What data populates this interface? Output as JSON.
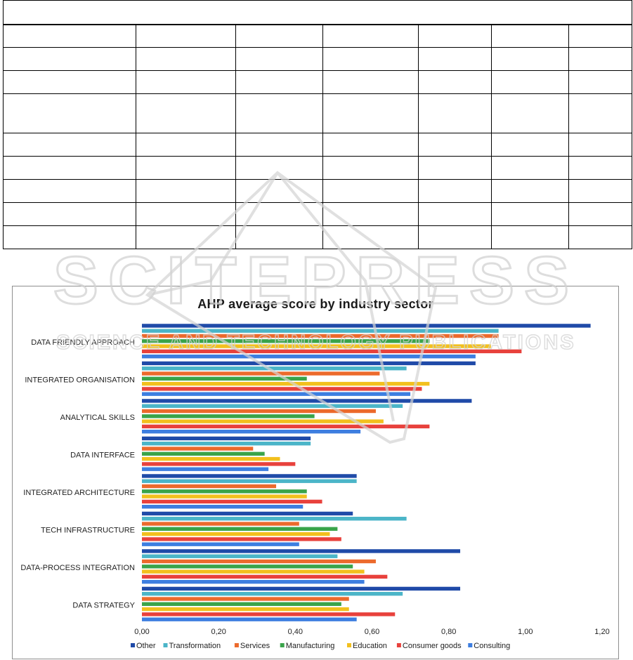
{
  "chart_data": {
    "type": "bar",
    "orientation": "horizontal",
    "title": "AHP average score by industry sector",
    "xlabel": "",
    "ylabel": "",
    "xlim": [
      0,
      1.2
    ],
    "x_ticks": [
      "0,00",
      "0,20",
      "0,40",
      "0,60",
      "0,80",
      "1,00",
      "1,20"
    ],
    "grid": false,
    "legend_position": "bottom",
    "categories": [
      "DATA FRIENDLY APPROACH",
      "INTEGRATED ORGANISATION",
      "ANALYTICAL SKILLS",
      "DATA INTERFACE",
      "INTEGRATED ARCHITECTURE",
      "TECH INFRASTRUCTURE",
      "DATA-PROCESS INTEGRATION",
      "DATA STRATEGY"
    ],
    "series": [
      {
        "name": "Other",
        "color": "#1f4aa8",
        "values": [
          1.17,
          0.87,
          0.86,
          0.44,
          0.56,
          0.55,
          0.83,
          0.83
        ]
      },
      {
        "name": "Transformation",
        "color": "#4bb5c8",
        "values": [
          0.93,
          0.69,
          0.68,
          0.44,
          0.56,
          0.69,
          0.51,
          0.68
        ]
      },
      {
        "name": "Services",
        "color": "#ec6a2c",
        "values": [
          0.93,
          0.62,
          0.61,
          0.29,
          0.35,
          0.41,
          0.61,
          0.54
        ]
      },
      {
        "name": "Manufacturing",
        "color": "#3aa44a",
        "values": [
          0.75,
          0.43,
          0.45,
          0.32,
          0.43,
          0.51,
          0.55,
          0.52
        ]
      },
      {
        "name": "Education",
        "color": "#f2c01e",
        "values": [
          0.91,
          0.75,
          0.63,
          0.36,
          0.43,
          0.49,
          0.58,
          0.54
        ]
      },
      {
        "name": "Consumer goods",
        "color": "#e8413c",
        "values": [
          0.99,
          0.73,
          0.75,
          0.4,
          0.47,
          0.52,
          0.64,
          0.66
        ]
      },
      {
        "name": "Consulting",
        "color": "#3d7ee0",
        "values": [
          0.87,
          0.7,
          0.57,
          0.33,
          0.42,
          0.41,
          0.58,
          0.56
        ]
      }
    ]
  },
  "watermark": {
    "main": "SCITEPRESS",
    "sub": "SCIENCE AND TECHNOLOGY PUBLICATIONS"
  }
}
